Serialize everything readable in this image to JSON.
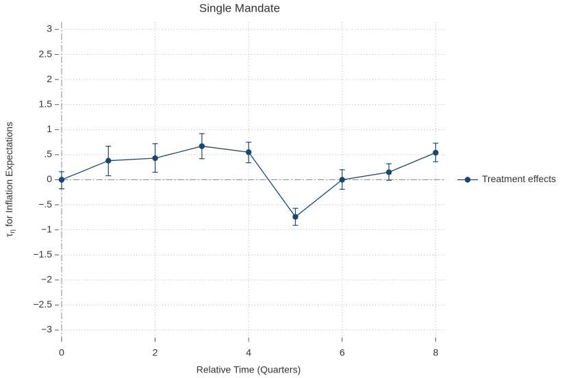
{
  "chart_data": {
    "type": "line",
    "title": "Single Mandate",
    "xlabel": "Relative Time (Quarters)",
    "ylabel": {
      "symbol": "τ",
      "subscript": "η",
      "text": "for Inflation Expectations"
    },
    "x": [
      0,
      1,
      2,
      3,
      4,
      5,
      6,
      7,
      8
    ],
    "series": [
      {
        "name": "Treatment effects",
        "color": "#1a476f",
        "values": [
          0,
          0.38,
          0.43,
          0.67,
          0.55,
          -0.74,
          0.0,
          0.15,
          0.54
        ],
        "lower": [
          -0.18,
          0.08,
          0.15,
          0.42,
          0.34,
          -0.91,
          -0.19,
          -0.01,
          0.36
        ],
        "upper": [
          0.16,
          0.67,
          0.72,
          0.92,
          0.75,
          -0.57,
          0.2,
          0.32,
          0.73
        ]
      }
    ],
    "xlim": [
      0,
      8.2
    ],
    "ylim": [
      -3.15,
      3.15
    ],
    "xticks": [
      0,
      2,
      4,
      6,
      8
    ],
    "yticks": [
      3,
      {
        "value": 2.5,
        "label": "2.5"
      },
      2,
      {
        "value": 1.5,
        "label": "1.5"
      },
      1,
      {
        "value": 0.5,
        "label": ".5"
      },
      0,
      {
        "value": -0.5,
        "label": "−.5"
      },
      {
        "value": -1,
        "label": "−1"
      },
      {
        "value": -1.5,
        "label": "−1.5"
      },
      {
        "value": -2,
        "label": "−2"
      },
      {
        "value": -2.5,
        "label": "−2.5"
      },
      {
        "value": -3,
        "label": "−3"
      }
    ],
    "hline": 0,
    "vline": 0,
    "grid": true,
    "legend": "right"
  }
}
